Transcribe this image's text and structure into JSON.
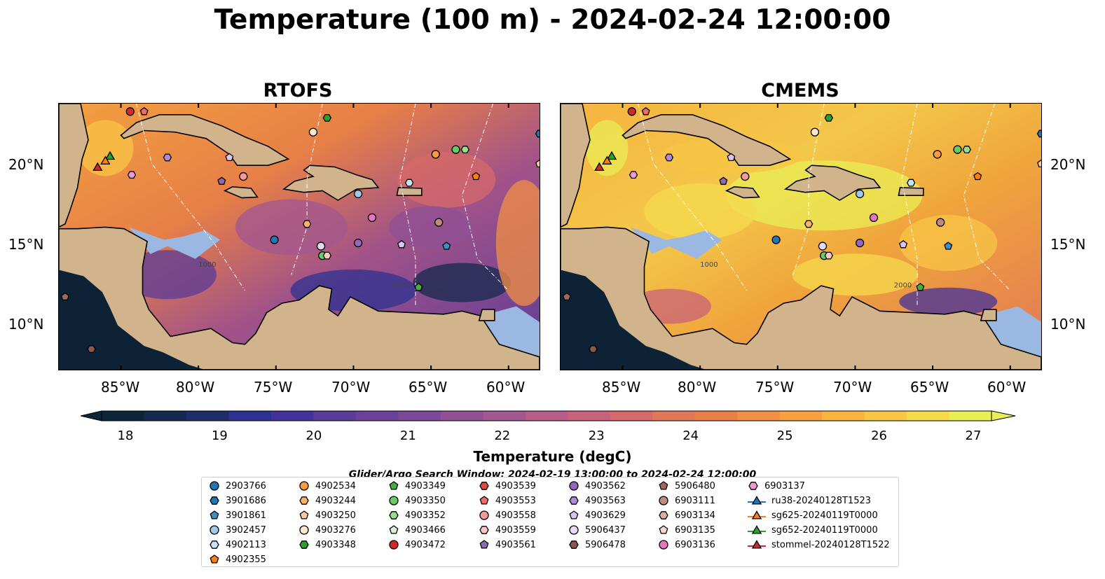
{
  "title": "Temperature (100 m) - 2024-02-24 12:00:00",
  "panels": [
    {
      "title": "RTOFS"
    },
    {
      "title": "CMEMS"
    }
  ],
  "lon_ticks": [
    "85°W",
    "80°W",
    "75°W",
    "70°W",
    "65°W",
    "60°W"
  ],
  "lat_ticks": [
    "20°N",
    "15°N",
    "10°N"
  ],
  "depth_labels": [
    "1000",
    "2000"
  ],
  "colorbar": {
    "ticks": [
      "18",
      "19",
      "20",
      "21",
      "22",
      "23",
      "24",
      "25",
      "26",
      "27"
    ],
    "label": "Temperature (degC)",
    "colors": [
      "#0d2538",
      "#16294d",
      "#1f2d66",
      "#2d3190",
      "#44329a",
      "#5a3b98",
      "#6b4199",
      "#7d4898",
      "#8f5094",
      "#a15790",
      "#b65e88",
      "#c8627a",
      "#d56a6a",
      "#e07758",
      "#ea8048",
      "#f18f44",
      "#f6a040",
      "#f9b440",
      "#f8c645",
      "#f5da4c",
      "#e9ee56"
    ]
  },
  "search_window": "Glider/Argo Search Window: 2024-02-19 13:00:00 to 2024-02-24 12:00:00",
  "legend": [
    {
      "label": "2903766",
      "marker": "circle",
      "color": "#1f77b4"
    },
    {
      "label": "3901686",
      "marker": "hexagon",
      "color": "#1f77b4"
    },
    {
      "label": "3901861",
      "marker": "pentagon",
      "color": "#3f8fc4"
    },
    {
      "label": "3902457",
      "marker": "circle",
      "color": "#9ecae9"
    },
    {
      "label": "4902113",
      "marker": "hexagon",
      "color": "#c6e2f5"
    },
    {
      "label": "4902355",
      "marker": "pentagon",
      "color": "#ff7f0e"
    },
    {
      "label": "4902534",
      "marker": "circle",
      "color": "#ff9a3c"
    },
    {
      "label": "4903244",
      "marker": "hexagon",
      "color": "#ffb266"
    },
    {
      "label": "4903250",
      "marker": "pentagon",
      "color": "#ffcc99"
    },
    {
      "label": "4903276",
      "marker": "circle",
      "color": "#fde8cf"
    },
    {
      "label": "4903348",
      "marker": "hexagon",
      "color": "#2ca02c"
    },
    {
      "label": "4903349",
      "marker": "pentagon",
      "color": "#3fb23f"
    },
    {
      "label": "4903350",
      "marker": "circle",
      "color": "#66cc66"
    },
    {
      "label": "4903352",
      "marker": "hexagon",
      "color": "#98df8a"
    },
    {
      "label": "4903466",
      "marker": "pentagon",
      "color": "#d6f5d0"
    },
    {
      "label": "4903472",
      "marker": "circle",
      "color": "#d62728"
    },
    {
      "label": "4903539",
      "marker": "hexagon",
      "color": "#e04848"
    },
    {
      "label": "4903553",
      "marker": "pentagon",
      "color": "#ee6b6b"
    },
    {
      "label": "4903558",
      "marker": "circle",
      "color": "#f59a9a"
    },
    {
      "label": "4903559",
      "marker": "hexagon",
      "color": "#fbc6c6"
    },
    {
      "label": "4903561",
      "marker": "pentagon",
      "color": "#8c6bb1"
    },
    {
      "label": "4903562",
      "marker": "circle",
      "color": "#9467bd"
    },
    {
      "label": "4903563",
      "marker": "hexagon",
      "color": "#b08ad6"
    },
    {
      "label": "4903629",
      "marker": "pentagon",
      "color": "#d9c6f0"
    },
    {
      "label": "5906437",
      "marker": "circle",
      "color": "#e8d9f7"
    },
    {
      "label": "5906478",
      "marker": "hexagon",
      "color": "#8c564b"
    },
    {
      "label": "5906480",
      "marker": "pentagon",
      "color": "#a0695d"
    },
    {
      "label": "6903111",
      "marker": "circle",
      "color": "#c08a7e"
    },
    {
      "label": "6903134",
      "marker": "hexagon",
      "color": "#d9ad9f"
    },
    {
      "label": "6903135",
      "marker": "pentagon",
      "color": "#f2dcd2"
    },
    {
      "label": "6903136",
      "marker": "circle",
      "color": "#e377c2"
    },
    {
      "label": "6903137",
      "marker": "hexagon",
      "color": "#ee99d4"
    },
    {
      "label": "ru38-20240128T1523",
      "marker": "triangle",
      "color": "#1f77b4"
    },
    {
      "label": "sg625-20240119T0000",
      "marker": "triangle",
      "color": "#ff7f0e"
    },
    {
      "label": "sg652-20240119T0000",
      "marker": "triangle",
      "color": "#2ca02c"
    },
    {
      "label": "stommel-20240128T1522",
      "marker": "triangle",
      "color": "#d62728"
    }
  ]
}
